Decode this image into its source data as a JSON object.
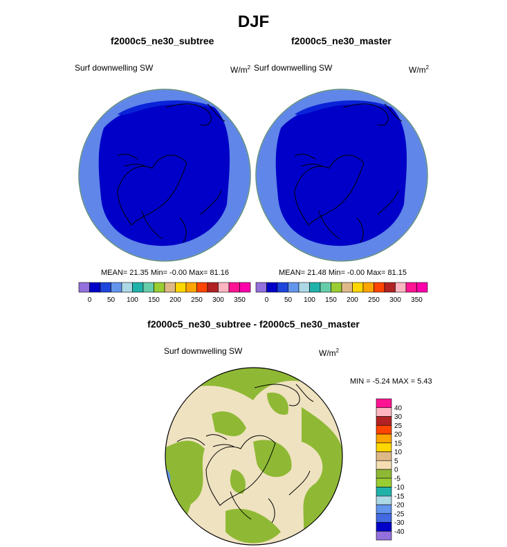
{
  "page_title": "DJF",
  "colors": {
    "ocean_deep": "#0000c8",
    "ocean_mid": "#4169e1",
    "ocean_light": "#7ca4f0",
    "land_line": "#000000",
    "diff_green": "#8fb935",
    "diff_tan": "#efe2c0"
  },
  "panels": [
    {
      "title": "f2000c5_ne30_subtree",
      "variable": "Surf downwelling SW",
      "units": "W/m",
      "units_exp": "2",
      "stats": "MEAN=  21.35  Min=  -0.00  Max=  81.16"
    },
    {
      "title": "f2000c5_ne30_master",
      "variable": "Surf downwelling SW",
      "units": "W/m",
      "units_exp": "2",
      "stats": "MEAN=  21.48  Min=  -0.00  Max=  81.15"
    }
  ],
  "diff_panel": {
    "title": "f2000c5_ne30_subtree - f2000c5_ne30_master",
    "variable": "Surf downwelling SW",
    "units": "W/m",
    "units_exp": "2",
    "stats": "MIN =  -5.24 MAX =   5.43"
  },
  "chart_data": [
    {
      "type": "heatmap",
      "title": "f2000c5_ne30_subtree",
      "variable": "Surf downwelling SW",
      "projection": "north polar stereographic",
      "colorbar": {
        "tick_labels": [
          "0",
          "50",
          "100",
          "150",
          "200",
          "250",
          "300",
          "350"
        ],
        "levels": [
          0,
          25,
          50,
          75,
          100,
          125,
          150,
          175,
          200,
          225,
          250,
          275,
          300,
          325,
          350
        ],
        "colors": [
          "#9370db",
          "#0000c8",
          "#1e46dc",
          "#6495ed",
          "#add8e6",
          "#20b2aa",
          "#66cdaa",
          "#9acd32",
          "#deb887",
          "#ffd700",
          "#ffa500",
          "#ff4500",
          "#b22222",
          "#ffb6c1",
          "#ff1493",
          "#ff00aa"
        ]
      },
      "mean": 21.35,
      "min": -0.0,
      "max": 81.16
    },
    {
      "type": "heatmap",
      "title": "f2000c5_ne30_master",
      "variable": "Surf downwelling SW",
      "projection": "north polar stereographic",
      "colorbar": {
        "tick_labels": [
          "0",
          "50",
          "100",
          "150",
          "200",
          "250",
          "300",
          "350"
        ],
        "levels": [
          0,
          25,
          50,
          75,
          100,
          125,
          150,
          175,
          200,
          225,
          250,
          275,
          300,
          325,
          350
        ],
        "colors": [
          "#9370db",
          "#0000c8",
          "#1e46dc",
          "#6495ed",
          "#add8e6",
          "#20b2aa",
          "#66cdaa",
          "#9acd32",
          "#deb887",
          "#ffd700",
          "#ffa500",
          "#ff4500",
          "#b22222",
          "#ffb6c1",
          "#ff1493",
          "#ff00aa"
        ]
      },
      "mean": 21.48,
      "min": -0.0,
      "max": 81.15
    },
    {
      "type": "heatmap",
      "title": "f2000c5_ne30_subtree - f2000c5_ne30_master",
      "variable": "Surf downwelling SW",
      "projection": "north polar stereographic",
      "colorbar": {
        "orientation": "vertical",
        "tick_labels": [
          "40",
          "30",
          "25",
          "20",
          "15",
          "10",
          "5",
          "0",
          "-5",
          "-10",
          "-15",
          "-20",
          "-25",
          "-30",
          "-40"
        ],
        "colors": [
          "#ff1493",
          "#ffb6c1",
          "#b22222",
          "#ff4500",
          "#ffa500",
          "#ffd700",
          "#deb887",
          "#f5deb3",
          "#8fb935",
          "#9acd32",
          "#20b2aa",
          "#add8e6",
          "#6495ed",
          "#4169e1",
          "#0000c8",
          "#9370db"
        ]
      },
      "min": -5.24,
      "max": 5.43
    }
  ]
}
